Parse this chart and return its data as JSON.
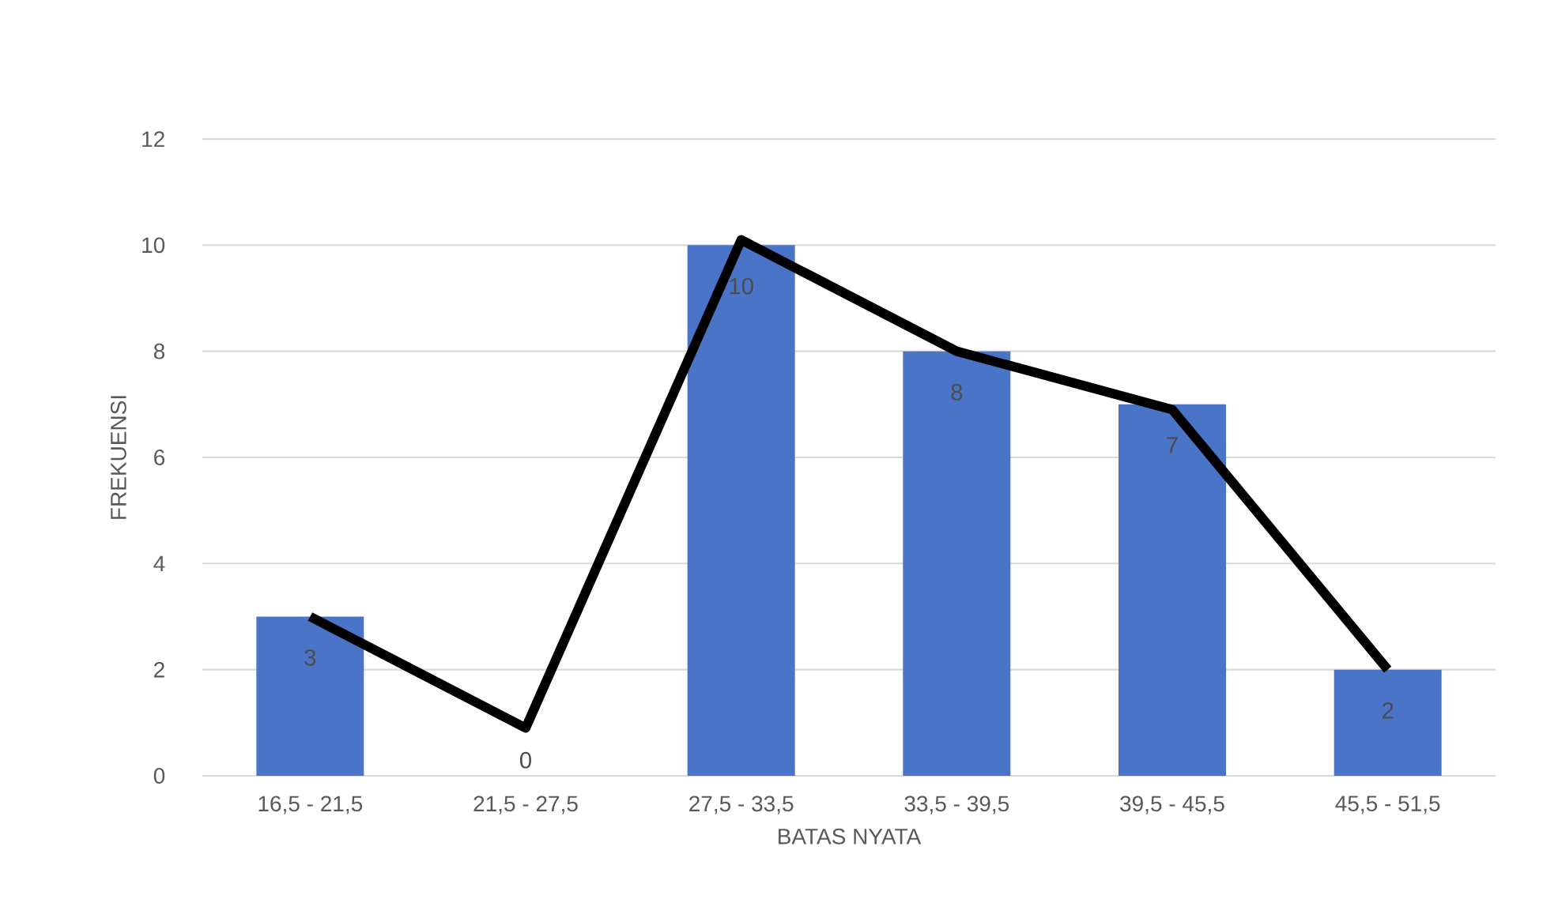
{
  "chart_data": {
    "type": "bar",
    "xlabel": "BATAS NYATA",
    "ylabel": "FREKUENSI",
    "categories": [
      "16,5 - 21,5",
      "21,5 - 27,5",
      "27,5 - 33,5",
      "33,5 - 39,5",
      "39,5 - 45,5",
      "45,5 - 51,5"
    ],
    "series": [
      {
        "color": "#4a74c8",
        "values": [
          3,
          0,
          10,
          8,
          7,
          2
        ],
        "value_labels": [
          "3",
          "0",
          "10",
          "8",
          "7",
          "2"
        ]
      },
      {
        "type": "line",
        "color": "#000000",
        "values": [
          3,
          0.9,
          10.1,
          8,
          6.9,
          2
        ],
        "marker": "none",
        "line_style": "solid"
      }
    ],
    "ylim": [
      0,
      12
    ],
    "yticks": [
      0,
      2,
      4,
      6,
      8,
      10,
      12
    ],
    "grid": "y"
  }
}
